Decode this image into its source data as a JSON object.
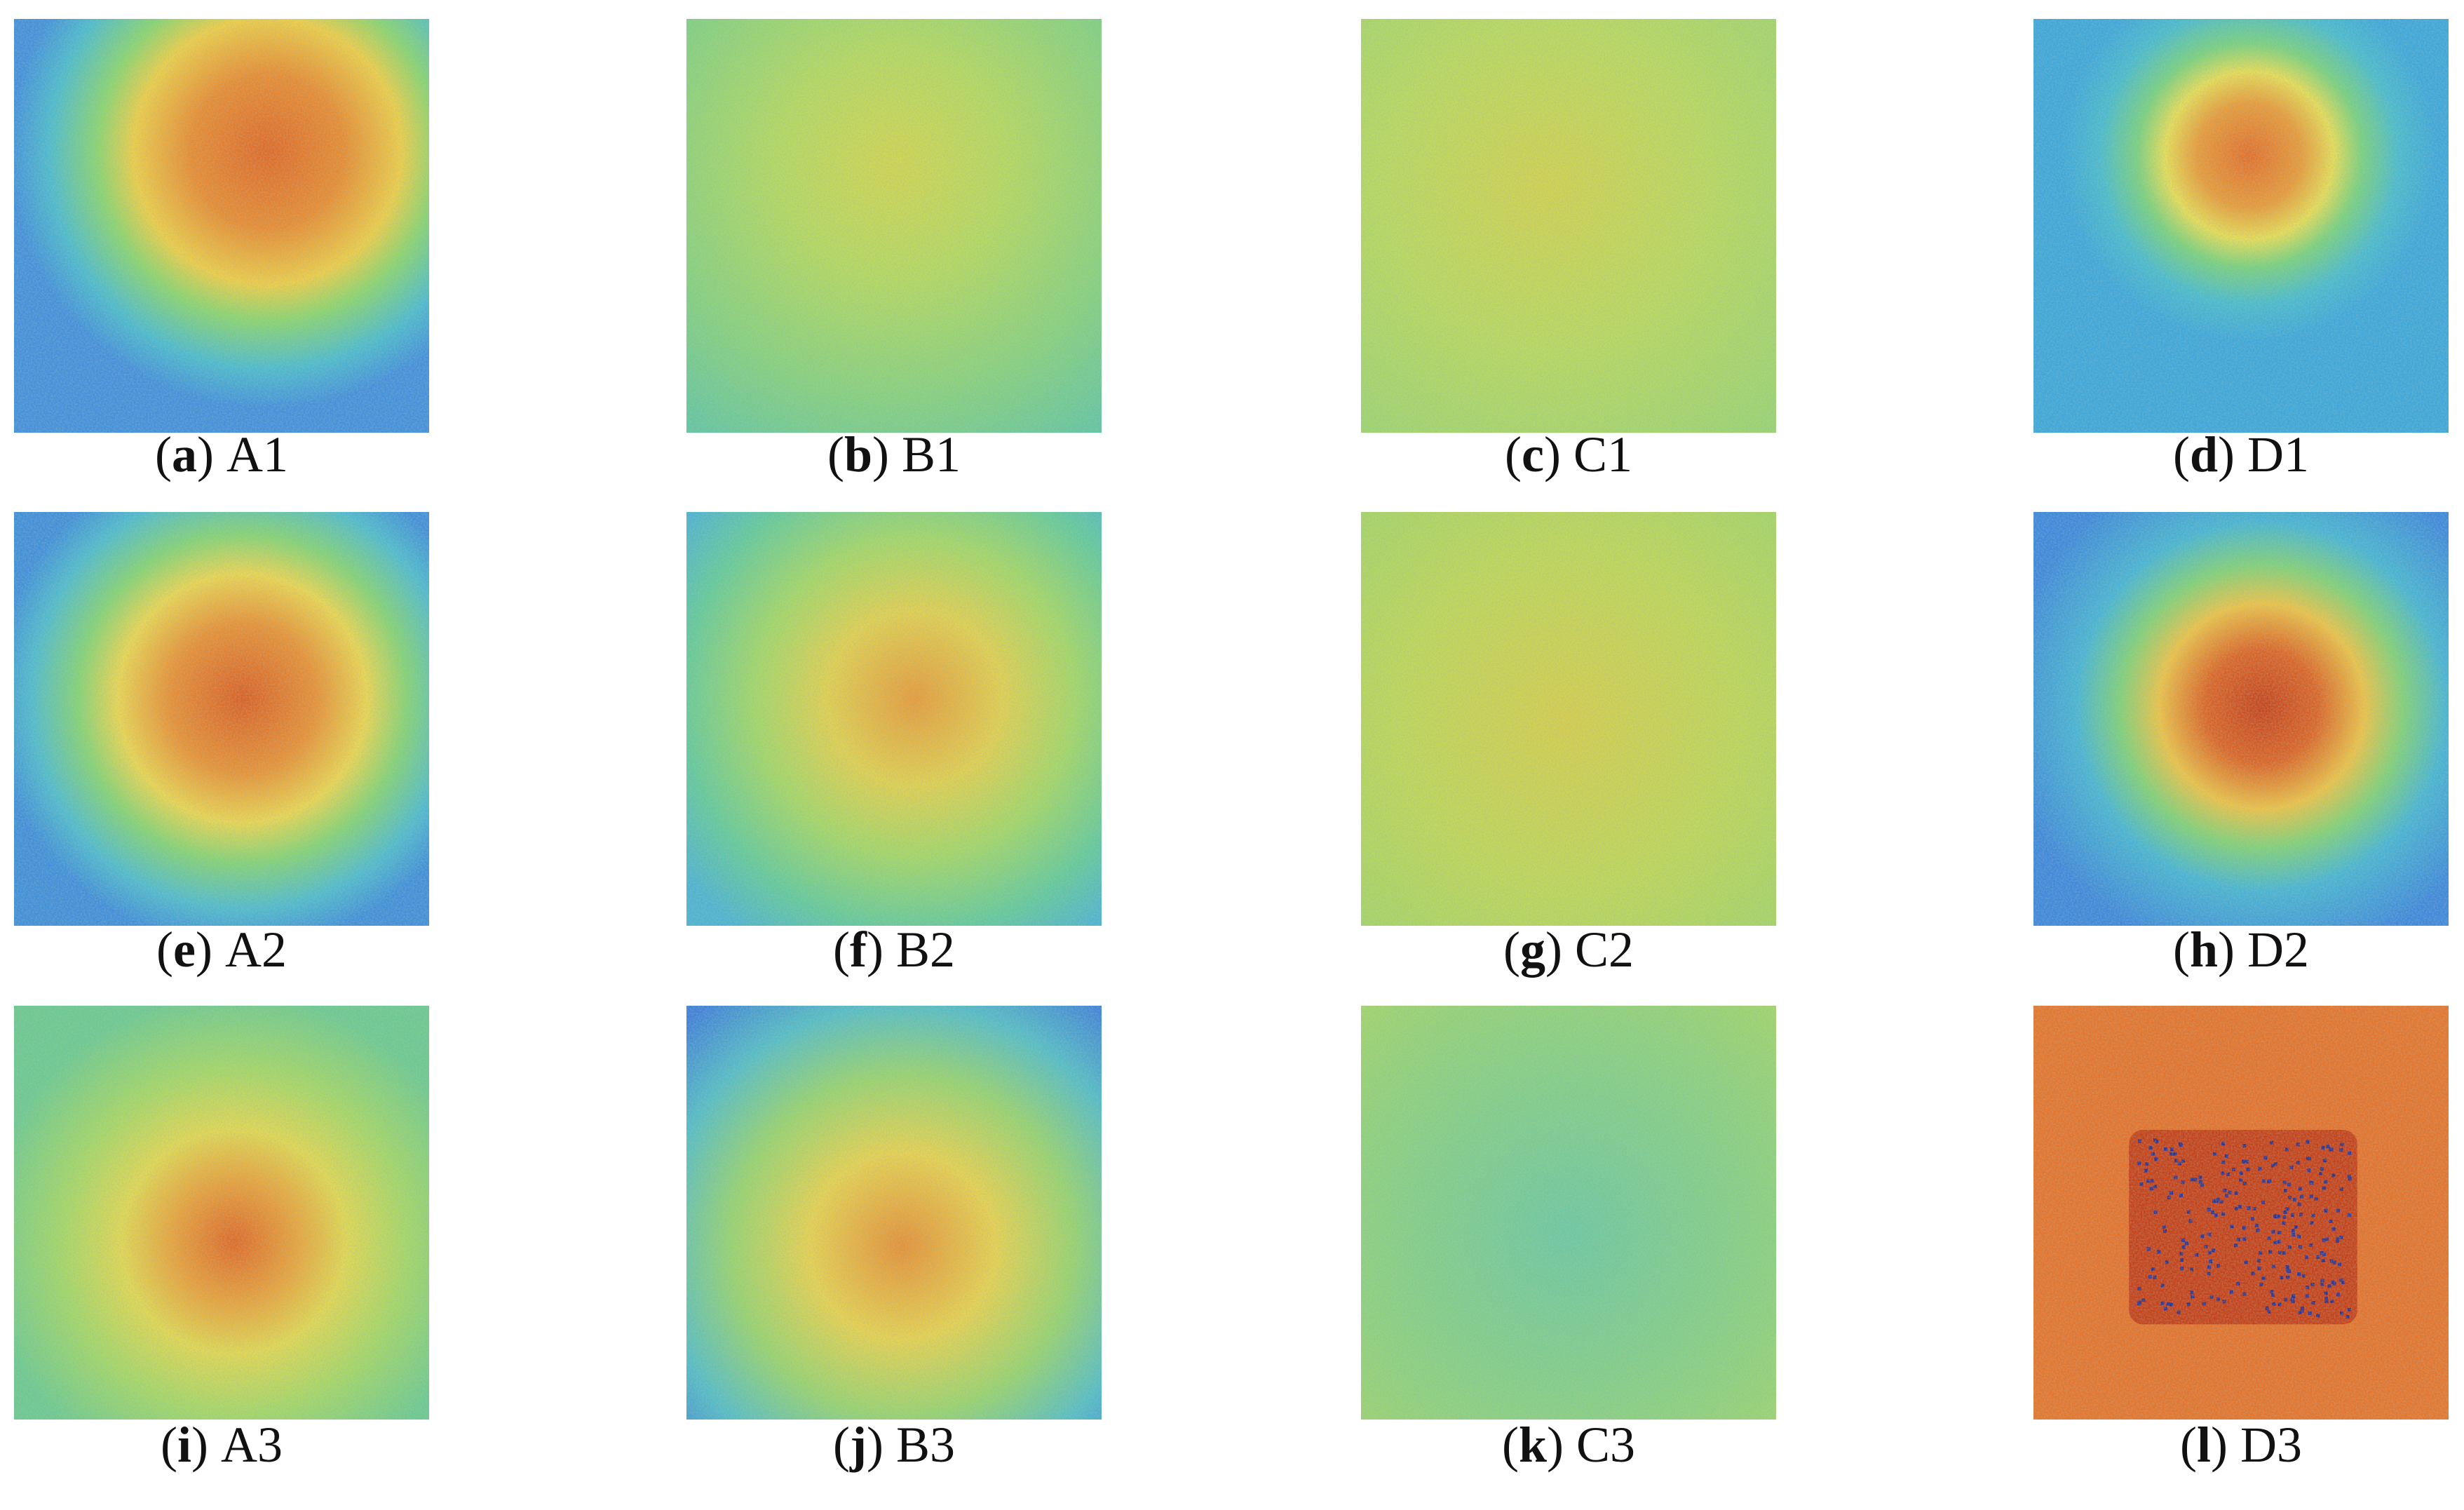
{
  "panels": [
    {
      "prefix": "(",
      "letter": "a",
      "suffix": ")",
      "name": "A1"
    },
    {
      "prefix": "(",
      "letter": "b",
      "suffix": ")",
      "name": "B1"
    },
    {
      "prefix": "(",
      "letter": "c",
      "suffix": ")",
      "name": "C1"
    },
    {
      "prefix": "(",
      "letter": "d",
      "suffix": ")",
      "name": "D1"
    },
    {
      "prefix": "(",
      "letter": "e",
      "suffix": ")",
      "name": "A2"
    },
    {
      "prefix": "(",
      "letter": "f",
      "suffix": ")",
      "name": "B2"
    },
    {
      "prefix": "(",
      "letter": "g",
      "suffix": ")",
      "name": "C2"
    },
    {
      "prefix": "(",
      "letter": "h",
      "suffix": ")",
      "name": "D2"
    },
    {
      "prefix": "(",
      "letter": "i",
      "suffix": ")",
      "name": "A3"
    },
    {
      "prefix": "(",
      "letter": "j",
      "suffix": ")",
      "name": "B3"
    },
    {
      "prefix": "(",
      "letter": "k",
      "suffix": ")",
      "name": "C3"
    },
    {
      "prefix": "(",
      "letter": "l",
      "suffix": ")",
      "name": "D3"
    }
  ]
}
